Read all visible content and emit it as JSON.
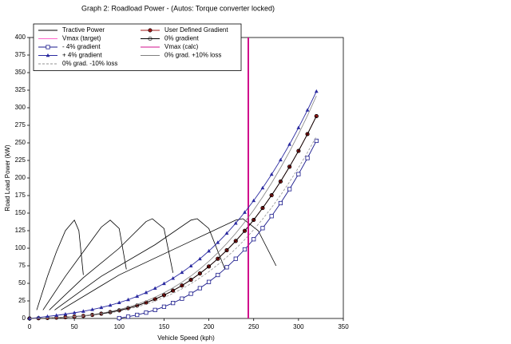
{
  "chart_data": {
    "type": "line",
    "title": "Graph 2: Roadload Power - (Autos: Torque converter locked)",
    "x_label": "Vehicle Speed (kph)",
    "y_label": "Road Load Power (kW)",
    "xlim": [
      0,
      350
    ],
    "xticks": [
      0,
      50,
      100,
      150,
      200,
      250,
      300,
      350
    ],
    "ylim": [
      0,
      400
    ],
    "yticks": [
      0,
      25,
      50,
      75,
      100,
      125,
      150,
      175,
      200,
      225,
      250,
      275,
      300,
      325,
      350,
      375,
      400
    ],
    "grid": false,
    "legend": "upper left",
    "series": [
      {
        "name": "Tractive Power",
        "color": "#000000",
        "marker": "none",
        "dash": false,
        "x": [
          8,
          20,
          30,
          40,
          50,
          55,
          60,
          null,
          15,
          40,
          60,
          80,
          90,
          100,
          108,
          null,
          22,
          60,
          100,
          130,
          137,
          150,
          160,
          null,
          28,
          80,
          140,
          180,
          187,
          200,
          218,
          null,
          35,
          100,
          180,
          230,
          238,
          255,
          275
        ],
        "values": [
          12,
          60,
          95,
          125,
          140,
          125,
          62,
          null,
          12,
          60,
          95,
          130,
          140,
          128,
          70,
          null,
          12,
          58,
          100,
          138,
          142,
          128,
          65,
          null,
          12,
          60,
          105,
          140,
          142,
          128,
          70,
          null,
          12,
          62,
          110,
          140,
          142,
          125,
          75
        ]
      },
      {
        "name": "User Defined Gradient",
        "color": "#a01818",
        "marker": "circle-filled",
        "dash": false,
        "x": [
          0,
          10,
          20,
          30,
          40,
          50,
          60,
          70,
          80,
          90,
          100,
          110,
          120,
          130,
          140,
          150,
          160,
          170,
          180,
          190,
          200,
          210,
          220,
          230,
          240,
          250,
          260,
          270,
          280,
          290,
          300,
          310,
          320
        ],
        "values": [
          0,
          0.3,
          0.7,
          1.1,
          1.7,
          2.6,
          3.6,
          5.0,
          6.8,
          8.9,
          11.5,
          14.6,
          18.3,
          22.6,
          27.5,
          33.2,
          39.6,
          46.9,
          55.0,
          64.0,
          74.0,
          85.0,
          97.1,
          110.3,
          124.7,
          140.3,
          157.2,
          175.4,
          195.0,
          216.0,
          238.5,
          262.5,
          288.1
        ]
      },
      {
        "name": "Vmax (target)",
        "color": "#ff66cc",
        "marker": "none",
        "dash": false,
        "x": [
          244,
          244
        ],
        "values": [
          0,
          400
        ]
      },
      {
        "name": "0% gradient",
        "color": "#000000",
        "marker": "circle-open",
        "dash": false,
        "x": [
          0,
          10,
          20,
          30,
          40,
          50,
          60,
          70,
          80,
          90,
          100,
          110,
          120,
          130,
          140,
          150,
          160,
          170,
          180,
          190,
          200,
          210,
          220,
          230,
          240,
          250,
          260,
          270,
          280,
          290,
          300,
          310,
          320
        ],
        "values": [
          0,
          0.3,
          0.7,
          1.1,
          1.7,
          2.6,
          3.6,
          5.0,
          6.8,
          8.9,
          11.5,
          14.6,
          18.3,
          22.6,
          27.5,
          33.2,
          39.6,
          46.9,
          55.0,
          64.0,
          74.0,
          85.0,
          97.1,
          110.3,
          124.7,
          140.3,
          157.2,
          175.4,
          195.0,
          216.0,
          238.5,
          262.5,
          288.1
        ]
      },
      {
        "name": "- 4% gradient",
        "color": "#1a1a8c",
        "marker": "square-open",
        "dash": false,
        "x": [
          100,
          110,
          120,
          130,
          140,
          150,
          160,
          170,
          180,
          190,
          200,
          210,
          220,
          230,
          240,
          250,
          260,
          270,
          280,
          290,
          300,
          310,
          320
        ],
        "values": [
          0.5,
          2.5,
          5.1,
          8.3,
          12.1,
          16.7,
          22.0,
          28.2,
          35.2,
          43.1,
          52.0,
          61.9,
          72.9,
          85.0,
          98.3,
          112.8,
          128.6,
          145.7,
          164.2,
          184.1,
          205.5,
          228.4,
          252.9
        ]
      },
      {
        "name": "Vmax (calc)",
        "color": "#d0108c",
        "marker": "none",
        "dash": false,
        "x": [
          244,
          244
        ],
        "values": [
          0,
          400
        ]
      },
      {
        "name": "+ 4% gradient",
        "color": "#2a2aa0",
        "marker": "triangle-filled",
        "dash": false,
        "x": [
          0,
          10,
          20,
          30,
          40,
          50,
          60,
          70,
          80,
          90,
          100,
          110,
          120,
          130,
          140,
          150,
          160,
          170,
          180,
          190,
          200,
          210,
          220,
          230,
          240,
          250,
          260,
          270,
          280,
          290,
          300,
          310,
          320
        ],
        "values": [
          0,
          1.4,
          2.9,
          4.4,
          6.1,
          8.1,
          10.2,
          12.7,
          15.6,
          18.8,
          22.5,
          26.7,
          31.5,
          36.9,
          42.9,
          49.7,
          57.2,
          65.6,
          74.8,
          84.9,
          96.0,
          108.1,
          121.3,
          135.6,
          151.1,
          167.8,
          185.8,
          205.1,
          225.8,
          247.9,
          271.5,
          296.6,
          323.3
        ]
      },
      {
        "name": "0% grad. +10% loss",
        "color": "#808080",
        "marker": "none",
        "dash": false,
        "x": [
          0,
          10,
          20,
          30,
          40,
          50,
          60,
          70,
          80,
          90,
          100,
          110,
          120,
          130,
          140,
          150,
          160,
          170,
          180,
          190,
          200,
          210,
          220,
          230,
          240,
          250,
          260,
          270,
          280,
          290,
          300,
          310,
          320
        ],
        "values": [
          0,
          0.3,
          0.8,
          1.2,
          1.9,
          2.9,
          4.0,
          5.5,
          7.5,
          9.8,
          12.7,
          16.1,
          20.1,
          24.9,
          30.3,
          36.5,
          43.6,
          51.6,
          60.5,
          70.4,
          81.4,
          93.5,
          106.8,
          121.3,
          137.2,
          154.3,
          172.9,
          192.9,
          214.5,
          237.6,
          262.4,
          288.8,
          316.9
        ]
      },
      {
        "name": "0% grad. -10% loss",
        "color": "#909090",
        "marker": "none",
        "dash": true,
        "x": [
          0,
          10,
          20,
          30,
          40,
          50,
          60,
          70,
          80,
          90,
          100,
          110,
          120,
          130,
          140,
          150,
          160,
          170,
          180,
          190,
          200,
          210,
          220,
          230,
          240,
          250,
          260,
          270,
          280,
          290,
          300,
          310,
          320
        ],
        "values": [
          0,
          0.3,
          0.6,
          1.0,
          1.5,
          2.3,
          3.2,
          4.5,
          6.1,
          8.0,
          10.4,
          13.1,
          16.5,
          20.3,
          24.8,
          29.9,
          35.6,
          42.2,
          49.5,
          57.6,
          66.6,
          76.5,
          87.4,
          99.3,
          112.2,
          126.3,
          141.5,
          157.9,
          175.5,
          194.4,
          214.7,
          236.3,
          259.3
        ]
      }
    ]
  }
}
